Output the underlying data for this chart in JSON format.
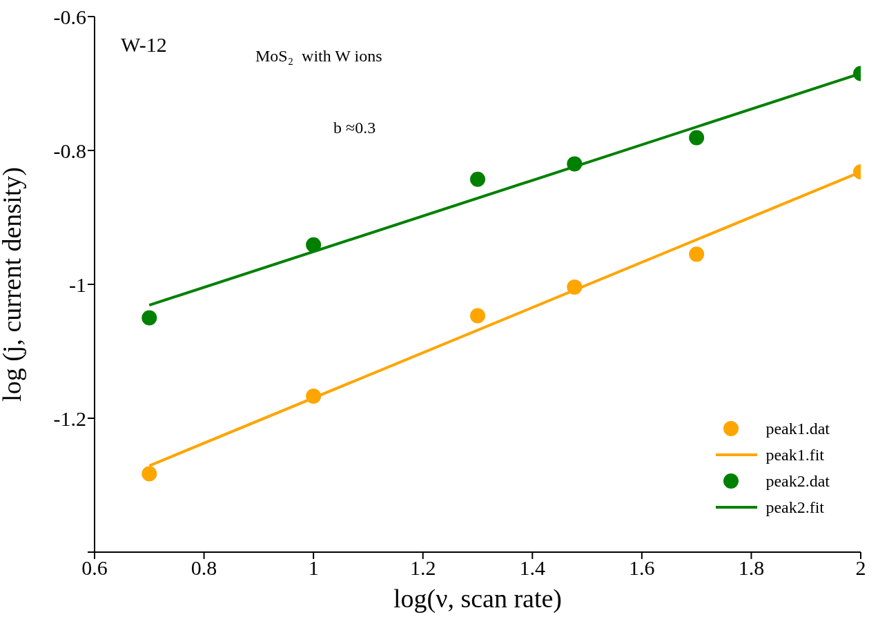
{
  "chart_data": {
    "type": "scatter",
    "xlabel": "log(ν, scan rate)",
    "ylabel": "log (j, current density)",
    "annotations": [
      "W-12",
      "MoS₂  with W ions",
      "b ≈0.3"
    ],
    "xlim": [
      0.6,
      2
    ],
    "xticks": [
      0.6,
      0.8,
      1,
      1.2,
      1.4,
      1.6,
      1.8,
      2
    ],
    "ylim": [
      -1.4,
      -0.6
    ],
    "yticks": [
      {
        "value": -1.4,
        "label": null
      },
      -1.2,
      -1,
      -0.8,
      -0.6
    ],
    "grid": false,
    "legend": "bottom right",
    "marker": "circle",
    "series": [
      {
        "name": "peak1.dat",
        "color": "#ffa500",
        "x": [
          0.7,
          1,
          1.3,
          1.477,
          1.7,
          2
        ],
        "values": [
          -1.283,
          -1.167,
          -1.047,
          -1.004,
          -0.955,
          -0.832
        ]
      },
      {
        "name": "peak1.fit",
        "type": "line",
        "color": "#ffa500",
        "x": [
          0.7,
          2
        ],
        "values": [
          -1.271,
          -0.832
        ],
        "marker": "none",
        "line_style": "solid"
      },
      {
        "name": "peak2.dat",
        "color": "#008000",
        "x": [
          0.7,
          1,
          1.3,
          1.477,
          1.7,
          2
        ],
        "values": [
          -1.05,
          -0.941,
          -0.843,
          -0.82,
          -0.781,
          -0.685
        ]
      },
      {
        "name": "peak2.fit",
        "type": "line",
        "color": "#008000",
        "x": [
          0.7,
          2
        ],
        "values": [
          -1.031,
          -0.685
        ],
        "marker": "none",
        "line_style": "solid"
      }
    ]
  }
}
